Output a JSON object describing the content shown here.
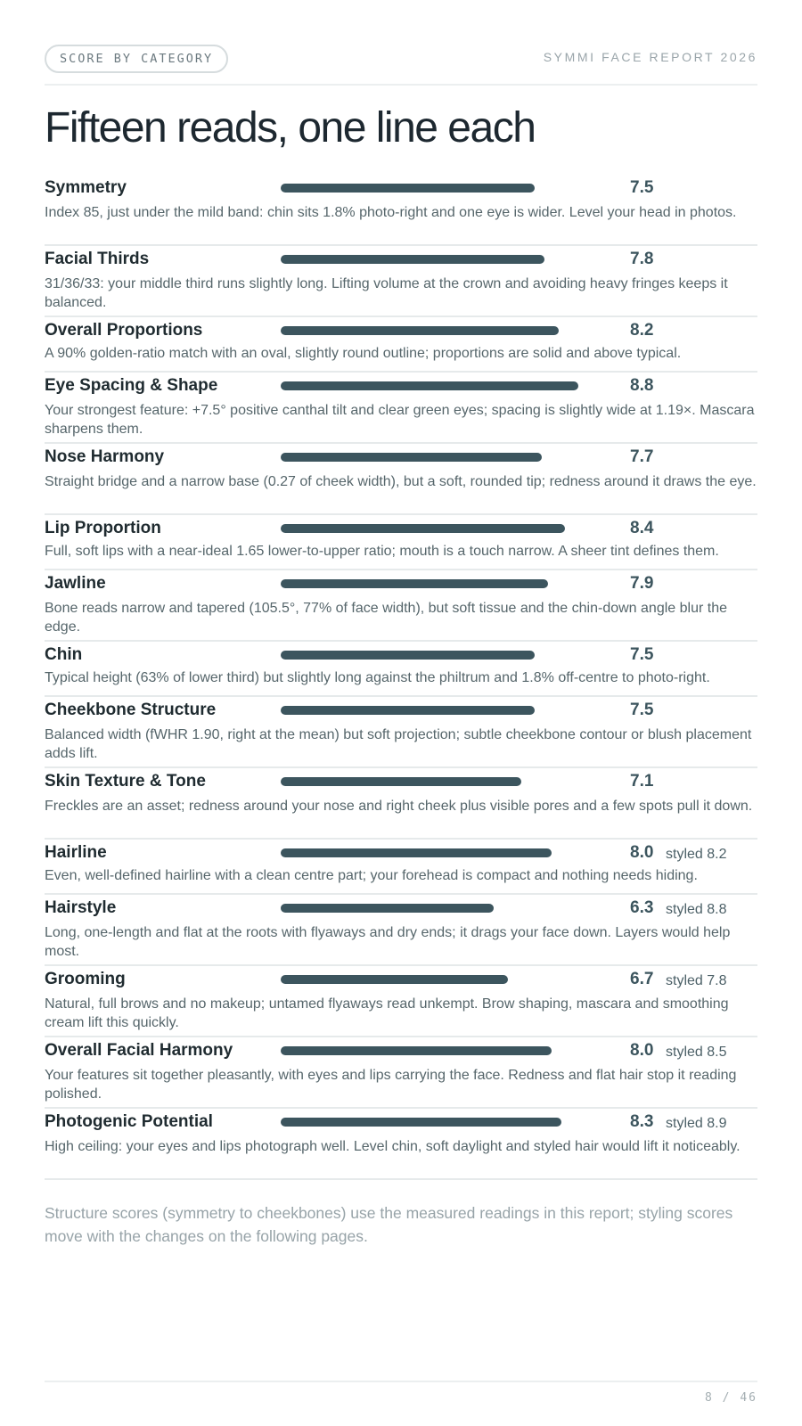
{
  "header": {
    "section_pill": "SCORE BY CATEGORY",
    "brand": "SYMMI FACE REPORT 2026"
  },
  "title": "Fifteen reads, one line each",
  "scale_max": 10,
  "colors": {
    "bar": "#3c555e",
    "text": "#1f2b30",
    "muted": "#56666b"
  },
  "categories": [
    {
      "name": "Symmetry",
      "score": "7.5",
      "styled": "",
      "desc": "Index 85, just under the mild band: chin sits 1.8% photo-right and one eye is wider. Level your head in photos."
    },
    {
      "name": "Facial Thirds",
      "score": "7.8",
      "styled": "",
      "desc": "31/36/33: your middle third runs slightly long. Lifting volume at the crown and avoiding heavy fringes keeps it balanced."
    },
    {
      "name": "Overall Proportions",
      "score": "8.2",
      "styled": "",
      "desc": "A 90% golden-ratio match with an oval, slightly round outline; proportions are solid and above typical."
    },
    {
      "name": "Eye Spacing & Shape",
      "score": "8.8",
      "styled": "",
      "desc": "Your strongest feature: +7.5° positive canthal tilt and clear green eyes; spacing is slightly wide at 1.19×. Mascara sharpens them."
    },
    {
      "name": "Nose Harmony",
      "score": "7.7",
      "styled": "",
      "desc": "Straight bridge and a narrow base (0.27 of cheek width), but a soft, rounded tip; redness around it draws the eye."
    },
    {
      "name": "Lip Proportion",
      "score": "8.4",
      "styled": "",
      "desc": "Full, soft lips with a near-ideal 1.65 lower-to-upper ratio; mouth is a touch narrow. A sheer tint defines them."
    },
    {
      "name": "Jawline",
      "score": "7.9",
      "styled": "",
      "desc": "Bone reads narrow and tapered (105.5°, 77% of face width), but soft tissue and the chin-down angle blur the edge."
    },
    {
      "name": "Chin",
      "score": "7.5",
      "styled": "",
      "desc": "Typical height (63% of lower third) but slightly long against the philtrum and 1.8% off-centre to photo-right."
    },
    {
      "name": "Cheekbone Structure",
      "score": "7.5",
      "styled": "",
      "desc": "Balanced width (fWHR 1.90, right at the mean) but soft projection; subtle cheekbone contour or blush placement adds lift."
    },
    {
      "name": "Skin Texture & Tone",
      "score": "7.1",
      "styled": "",
      "desc": "Freckles are an asset; redness around your nose and right cheek plus visible pores and a few spots pull it down."
    },
    {
      "name": "Hairline",
      "score": "8.0",
      "styled": "styled 8.2",
      "desc": "Even, well-defined hairline with a clean centre part; your forehead is compact and nothing needs hiding."
    },
    {
      "name": "Hairstyle",
      "score": "6.3",
      "styled": "styled 8.8",
      "desc": "Long, one-length and flat at the roots with flyaways and dry ends; it drags your face down. Layers would help most."
    },
    {
      "name": "Grooming",
      "score": "6.7",
      "styled": "styled 7.8",
      "desc": "Natural, full brows and no makeup; untamed flyaways read unkempt. Brow shaping, mascara and smoothing cream lift this quickly."
    },
    {
      "name": "Overall Facial Harmony",
      "score": "8.0",
      "styled": "styled 8.5",
      "desc": "Your features sit together pleasantly, with eyes and lips carrying the face. Redness and flat hair stop it reading polished."
    },
    {
      "name": "Photogenic Potential",
      "score": "8.3",
      "styled": "styled 8.9",
      "desc": "High ceiling: your eyes and lips photograph well. Level chin, soft daylight and styled hair would lift it noticeably."
    }
  ],
  "footnote": "Structure scores (symmetry to cheekbones) use the measured readings in this report; styling scores move with the changes on the following pages.",
  "page_number": "8 / 46"
}
